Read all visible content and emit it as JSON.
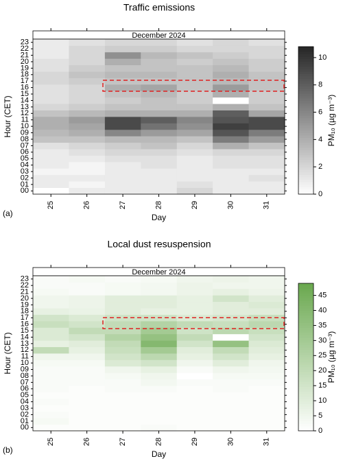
{
  "chart_data": [
    {
      "type": "heatmap",
      "title": "Traffic emissions",
      "strip_label": "December 2024",
      "panel_label": "(a)",
      "xlabel": "Day",
      "ylabel": "Hour (CET)",
      "colorbar_label": "PM₁₀ (µg m⁻³)",
      "x": [
        "25",
        "26",
        "27",
        "28",
        "29",
        "30",
        "31"
      ],
      "y": [
        "00",
        "01",
        "02",
        "03",
        "04",
        "05",
        "06",
        "07",
        "08",
        "09",
        "10",
        "11",
        "12",
        "13",
        "14",
        "15",
        "16",
        "17",
        "18",
        "19",
        "20",
        "21",
        "22",
        "23"
      ],
      "values": [
        [
          0,
          1,
          1,
          1,
          2,
          1,
          1
        ],
        [
          1,
          0.5,
          1,
          1,
          1.5,
          1,
          1
        ],
        [
          1,
          1,
          1,
          1,
          1,
          1,
          1.5
        ],
        [
          0.5,
          0.5,
          1,
          1,
          1,
          1,
          1
        ],
        [
          1,
          0.5,
          1,
          1.5,
          1,
          1.5,
          1.5
        ],
        [
          1,
          1,
          1.5,
          1.5,
          1,
          1.5,
          1.5
        ],
        [
          1,
          1.5,
          2,
          2,
          1.5,
          2,
          2
        ],
        [
          1.5,
          2,
          2.5,
          3,
          2,
          4,
          3
        ],
        [
          3,
          3,
          3.5,
          3.5,
          3,
          6.5,
          5
        ],
        [
          3.5,
          4,
          6,
          5,
          4.5,
          8.5,
          6.5
        ],
        [
          4,
          4.5,
          9,
          7,
          5.5,
          9.5,
          9
        ],
        [
          4,
          5,
          9,
          8,
          6,
          8.5,
          9
        ],
        [
          3,
          3.5,
          4,
          4,
          4,
          8,
          4.5
        ],
        [
          2,
          2.5,
          3,
          3,
          3,
          4,
          3
        ],
        [
          1.5,
          2,
          2.5,
          3,
          2.5,
          0,
          2.5
        ],
        [
          1.5,
          2,
          3,
          3.5,
          2.5,
          4,
          2.5
        ],
        [
          1.5,
          2,
          4,
          4.5,
          3,
          5,
          3
        ],
        [
          2,
          2.5,
          3,
          3,
          3,
          3.5,
          3
        ],
        [
          2,
          3,
          3.5,
          3.5,
          3,
          4,
          3
        ],
        [
          1.5,
          2.5,
          3,
          3,
          3,
          3.5,
          2.5
        ],
        [
          1.5,
          2,
          4,
          3,
          2.5,
          3,
          2.5
        ],
        [
          1,
          2,
          5.5,
          3.5,
          3,
          2.5,
          2
        ],
        [
          1,
          2,
          2.5,
          2.5,
          2,
          2,
          2
        ],
        [
          1,
          1.5,
          2,
          2,
          1.5,
          2,
          1.5
        ]
      ],
      "zlim": [
        0,
        10.8
      ],
      "zticks": [
        0,
        2,
        4,
        6,
        8,
        10
      ],
      "colors": [
        "#ffffff",
        "#262626"
      ]
    },
    {
      "type": "heatmap",
      "title": "Local dust resuspension",
      "strip_label": "December 2024",
      "panel_label": "(b)",
      "xlabel": "Day",
      "ylabel": "Hour (CET)",
      "colorbar_label": "PM₁₀ (µg m⁻³)",
      "x": [
        "25",
        "26",
        "27",
        "28",
        "29",
        "30",
        "31"
      ],
      "y": [
        "00",
        "01",
        "02",
        "03",
        "04",
        "05",
        "06",
        "07",
        "08",
        "09",
        "10",
        "11",
        "12",
        "13",
        "14",
        "15",
        "16",
        "17",
        "18",
        "19",
        "20",
        "21",
        "22",
        "23"
      ],
      "values": [
        [
          1,
          1,
          1,
          2,
          1,
          1,
          1
        ],
        [
          3,
          1,
          1,
          1,
          1,
          1,
          1
        ],
        [
          2,
          1,
          1,
          1,
          1,
          1,
          1
        ],
        [
          1,
          1,
          1,
          1,
          1,
          1,
          1
        ],
        [
          2,
          1,
          1,
          1,
          1,
          1,
          1
        ],
        [
          1,
          1,
          1,
          1,
          1,
          1,
          1
        ],
        [
          2,
          1,
          2,
          2,
          1,
          2,
          1
        ],
        [
          2,
          2,
          2,
          4,
          2,
          2,
          2
        ],
        [
          2,
          2,
          3,
          5,
          0,
          3,
          3
        ],
        [
          2,
          2,
          5,
          8,
          2,
          5,
          4
        ],
        [
          3,
          3,
          12,
          15,
          5,
          10,
          5
        ],
        [
          5,
          5,
          15,
          22,
          8,
          15,
          8
        ],
        [
          20,
          8,
          18,
          30,
          10,
          20,
          10
        ],
        [
          8,
          10,
          20,
          40,
          15,
          35,
          12
        ],
        [
          12,
          15,
          25,
          35,
          20,
          0,
          15
        ],
        [
          12,
          20,
          20,
          30,
          16,
          22,
          18
        ],
        [
          18,
          15,
          20,
          25,
          20,
          18,
          22
        ],
        [
          15,
          12,
          16,
          16,
          12,
          14,
          18
        ],
        [
          8,
          7,
          10,
          8,
          8,
          10,
          10
        ],
        [
          5,
          6,
          10,
          10,
          8,
          10,
          12
        ],
        [
          5,
          6,
          10,
          10,
          8,
          15,
          10
        ],
        [
          3,
          2,
          3,
          4,
          6,
          8,
          6
        ],
        [
          2,
          2,
          3,
          4,
          6,
          5,
          5
        ],
        [
          2,
          3,
          2,
          3,
          5,
          6,
          5
        ]
      ],
      "zlim": [
        0,
        49
      ],
      "zticks": [
        0,
        5,
        10,
        15,
        20,
        25,
        30,
        35,
        40,
        45
      ],
      "colors": [
        "#ffffff",
        "#6aa84f"
      ]
    }
  ]
}
